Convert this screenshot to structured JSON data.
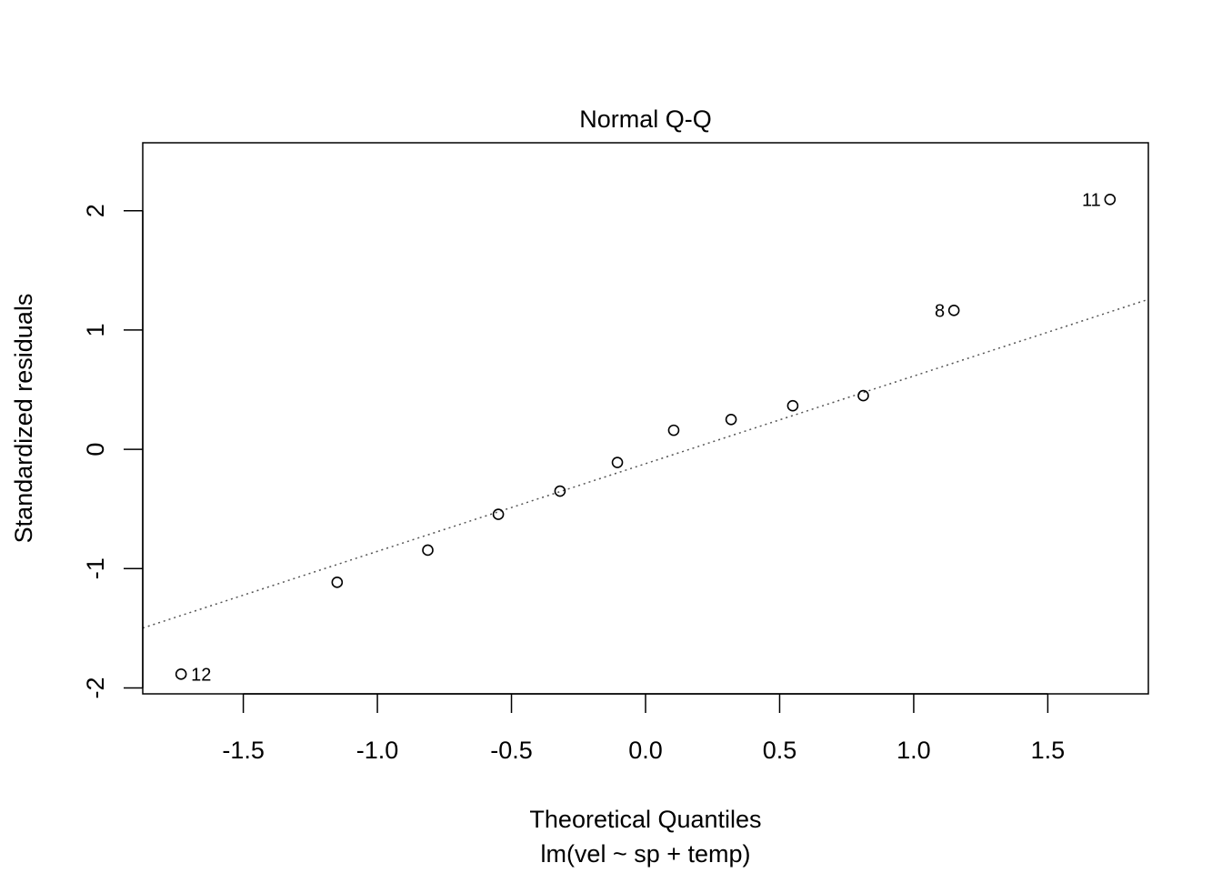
{
  "chart_data": {
    "type": "scatter",
    "title": "Normal Q-Q",
    "xlabel": "Theoretical Quantiles",
    "subtitle": "lm(vel ~ sp + temp)",
    "ylabel": "Standardized residuals",
    "xlim": [
      -1.875,
      1.875
    ],
    "ylim": [
      -2.05,
      2.57
    ],
    "xticks": [
      -1.5,
      -1.0,
      -0.5,
      0.0,
      0.5,
      1.0,
      1.5
    ],
    "xtick_labels": [
      "-1.5",
      "-1.0",
      "-0.5",
      "0.0",
      "0.5",
      "1.0",
      "1.5"
    ],
    "yticks": [
      -2,
      -1,
      0,
      1,
      2
    ],
    "ytick_labels": [
      "-2",
      "-1",
      "0",
      "1",
      "2"
    ],
    "points": [
      {
        "x": -1.732,
        "y": -1.885,
        "label": "12"
      },
      {
        "x": -1.15,
        "y": -1.115,
        "label": ""
      },
      {
        "x": -0.812,
        "y": -0.845,
        "label": ""
      },
      {
        "x": -0.549,
        "y": -0.545,
        "label": ""
      },
      {
        "x": -0.319,
        "y": -0.35,
        "label": ""
      },
      {
        "x": -0.105,
        "y": -0.11,
        "label": ""
      },
      {
        "x": 0.105,
        "y": 0.16,
        "label": ""
      },
      {
        "x": 0.319,
        "y": 0.25,
        "label": ""
      },
      {
        "x": 0.549,
        "y": 0.365,
        "label": ""
      },
      {
        "x": 0.812,
        "y": 0.45,
        "label": ""
      },
      {
        "x": 1.15,
        "y": 1.165,
        "label": "8"
      },
      {
        "x": 1.732,
        "y": 2.095,
        "label": "11"
      }
    ],
    "reference_line": {
      "intercept": -0.1204,
      "slope": 0.7348,
      "style": "dotted"
    },
    "grid": false,
    "legend": "none"
  }
}
